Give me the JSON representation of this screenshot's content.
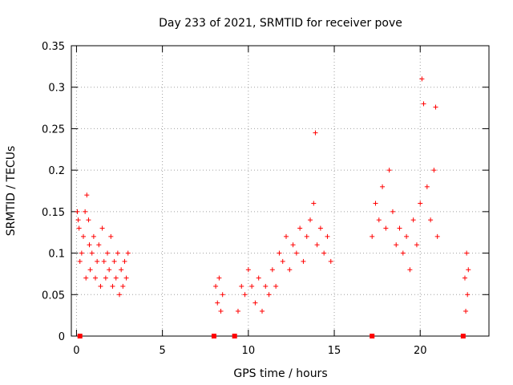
{
  "chart_data": {
    "type": "scatter",
    "title": "Day 233 of 2021, SRMTID for receiver pove",
    "xlabel": "GPS time / hours",
    "ylabel": "SRMTID / TECUs",
    "xlim": [
      -0.3,
      24.0
    ],
    "ylim": [
      0,
      0.35
    ],
    "x_ticks": [
      0,
      5,
      10,
      15,
      20
    ],
    "x_tick_labels": [
      "0",
      "5",
      "10",
      "15",
      "20"
    ],
    "y_ticks": [
      0,
      0.05,
      0.1,
      0.15,
      0.2,
      0.25,
      0.3,
      0.35
    ],
    "y_tick_labels": [
      "0",
      "0.05",
      "0.1",
      "0.15",
      "0.2",
      "0.25",
      "0.3",
      "0.35"
    ],
    "grid": true,
    "marker": "plus",
    "color": "#ff0000",
    "series": [
      {
        "name": "SRMTID",
        "points": [
          [
            0.05,
            0.15
          ],
          [
            0.1,
            0.14
          ],
          [
            0.15,
            0.13
          ],
          [
            0.2,
            0.09
          ],
          [
            0.3,
            0.1
          ],
          [
            0.4,
            0.12
          ],
          [
            0.5,
            0.15
          ],
          [
            0.55,
            0.07
          ],
          [
            0.6,
            0.17
          ],
          [
            0.7,
            0.14
          ],
          [
            0.75,
            0.11
          ],
          [
            0.8,
            0.08
          ],
          [
            0.9,
            0.1
          ],
          [
            1.0,
            0.12
          ],
          [
            1.1,
            0.07
          ],
          [
            1.2,
            0.09
          ],
          [
            1.3,
            0.11
          ],
          [
            1.4,
            0.06
          ],
          [
            1.5,
            0.13
          ],
          [
            1.6,
            0.09
          ],
          [
            1.7,
            0.07
          ],
          [
            1.8,
            0.1
          ],
          [
            1.9,
            0.08
          ],
          [
            2.0,
            0.12
          ],
          [
            2.1,
            0.06
          ],
          [
            2.2,
            0.09
          ],
          [
            2.3,
            0.07
          ],
          [
            2.4,
            0.1
          ],
          [
            2.5,
            0.05
          ],
          [
            2.6,
            0.08
          ],
          [
            2.7,
            0.06
          ],
          [
            2.8,
            0.09
          ],
          [
            2.9,
            0.07
          ],
          [
            3.0,
            0.1
          ],
          [
            8.1,
            0.06
          ],
          [
            8.2,
            0.04
          ],
          [
            8.3,
            0.07
          ],
          [
            8.4,
            0.03
          ],
          [
            8.5,
            0.05
          ],
          [
            9.4,
            0.03
          ],
          [
            9.6,
            0.06
          ],
          [
            9.8,
            0.05
          ],
          [
            10.0,
            0.08
          ],
          [
            10.2,
            0.06
          ],
          [
            10.4,
            0.04
          ],
          [
            10.6,
            0.07
          ],
          [
            10.8,
            0.03
          ],
          [
            11.0,
            0.06
          ],
          [
            11.2,
            0.05
          ],
          [
            11.4,
            0.08
          ],
          [
            11.6,
            0.06
          ],
          [
            11.8,
            0.1
          ],
          [
            12.0,
            0.09
          ],
          [
            12.2,
            0.12
          ],
          [
            12.4,
            0.08
          ],
          [
            12.6,
            0.11
          ],
          [
            12.8,
            0.1
          ],
          [
            13.0,
            0.13
          ],
          [
            13.2,
            0.09
          ],
          [
            13.4,
            0.12
          ],
          [
            13.6,
            0.14
          ],
          [
            13.8,
            0.16
          ],
          [
            14.0,
            0.11
          ],
          [
            14.2,
            0.13
          ],
          [
            14.4,
            0.1
          ],
          [
            14.6,
            0.12
          ],
          [
            14.8,
            0.09
          ],
          [
            13.9,
            0.245
          ],
          [
            17.2,
            0.12
          ],
          [
            17.4,
            0.16
          ],
          [
            17.6,
            0.14
          ],
          [
            17.8,
            0.18
          ],
          [
            18.0,
            0.13
          ],
          [
            18.2,
            0.2
          ],
          [
            18.4,
            0.15
          ],
          [
            18.6,
            0.11
          ],
          [
            18.8,
            0.13
          ],
          [
            19.0,
            0.1
          ],
          [
            19.2,
            0.12
          ],
          [
            19.4,
            0.08
          ],
          [
            19.6,
            0.14
          ],
          [
            19.8,
            0.11
          ],
          [
            20.0,
            0.16
          ],
          [
            20.1,
            0.31
          ],
          [
            20.2,
            0.28
          ],
          [
            20.4,
            0.18
          ],
          [
            20.6,
            0.14
          ],
          [
            20.8,
            0.2
          ],
          [
            21.0,
            0.12
          ],
          [
            20.9,
            0.276
          ],
          [
            22.6,
            0.07
          ],
          [
            22.7,
            0.1
          ],
          [
            22.75,
            0.05
          ],
          [
            22.8,
            0.08
          ],
          [
            22.65,
            0.03
          ]
        ]
      }
    ],
    "zero_markers_x": [
      0.2,
      8.0,
      9.2,
      17.2,
      22.5
    ]
  }
}
